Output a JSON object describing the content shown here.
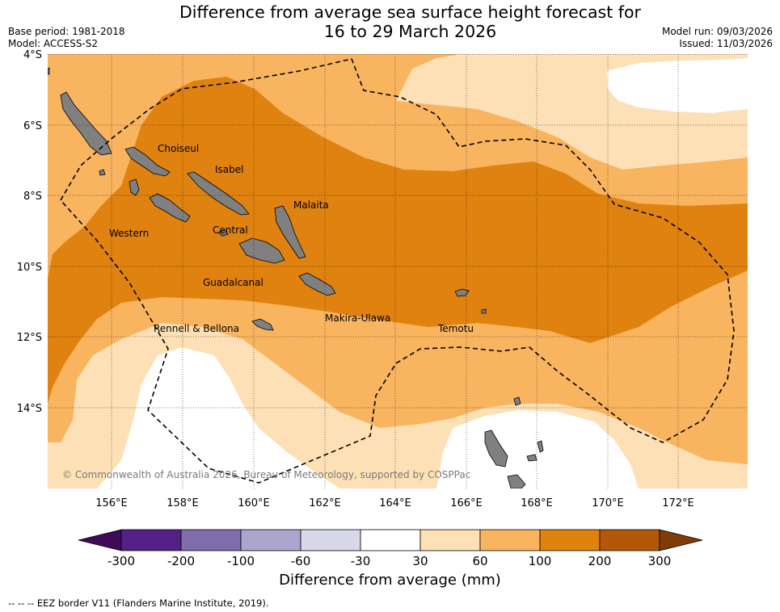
{
  "title": {
    "line1": "Difference from average sea surface height forecast for",
    "line2": "16 to 29 March 2026"
  },
  "meta_left": {
    "base_period": "Base period: 1981-2018",
    "model": "Model: ACCESS-S2"
  },
  "meta_right": {
    "model_run": "Model run: 09/03/2026",
    "issued": "Issued: 11/03/2026"
  },
  "map": {
    "lat_labels": [
      "4°S",
      "6°S",
      "8°S",
      "10°S",
      "12°S",
      "14°S"
    ],
    "lon_labels": [
      "156°E",
      "158°E",
      "160°E",
      "162°E",
      "164°E",
      "166°E",
      "168°E",
      "170°E",
      "172°E"
    ],
    "provinces": [
      "Choiseul",
      "Isabel",
      "Malaita",
      "Western",
      "Central",
      "Guadalcanal",
      "Rennell & Bellona",
      "Makira-Ulawa",
      "Temotu"
    ],
    "copyright": "© Commonwealth of Australia 2026, Bureau of Meteorology, supported by COSPPac",
    "land_color": "#808080"
  },
  "colorbar": {
    "ticks": [
      "-300",
      "-200",
      "-100",
      "-60",
      "-30",
      "30",
      "60",
      "100",
      "200",
      "300"
    ],
    "colors": [
      "#3f0a57",
      "#542088",
      "#7f6dab",
      "#aca6cf",
      "#d8d8e9",
      "#ffffff",
      "#fde0b5",
      "#f9b460",
      "#e0820f",
      "#b35806",
      "#7f3b08"
    ],
    "label": "Difference from average (mm)"
  },
  "footer": "--  --  -- EEZ border V11 (Flanders Marine Institute, 2019)."
}
